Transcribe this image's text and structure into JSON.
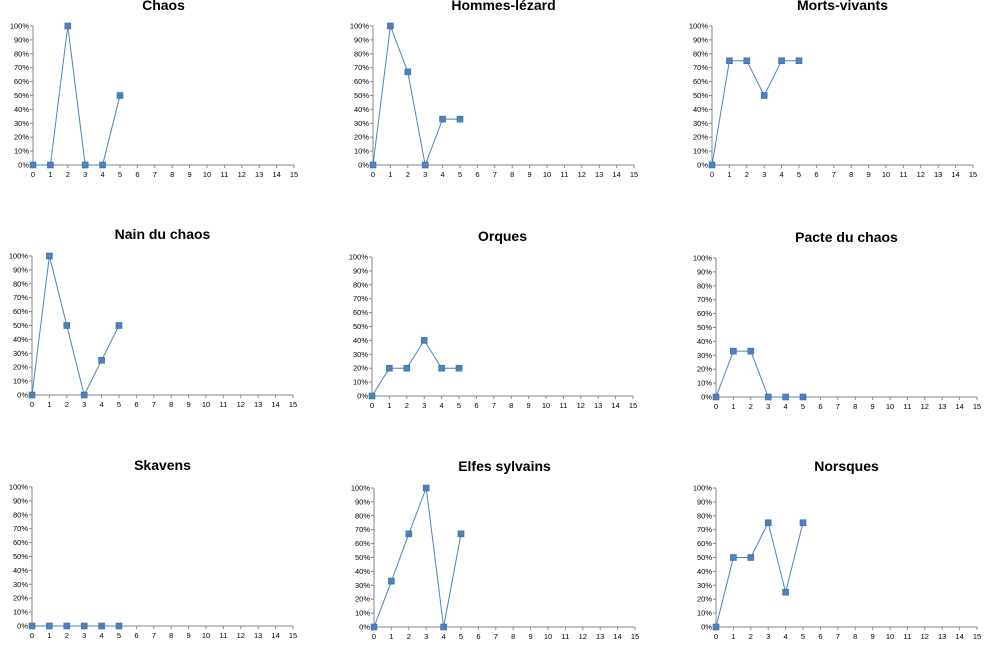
{
  "chart_data": [
    {
      "type": "line",
      "title": "Chaos",
      "x": [
        0,
        1,
        2,
        3,
        4,
        5
      ],
      "values": [
        0,
        0,
        100,
        0,
        0,
        50
      ],
      "xlim": [
        0,
        15
      ],
      "ylim": [
        0,
        100
      ],
      "xticks": [
        0,
        1,
        2,
        3,
        4,
        5,
        6,
        7,
        8,
        9,
        10,
        11,
        12,
        13,
        14,
        15
      ],
      "yticks": [
        "0%",
        "10%",
        "20%",
        "30%",
        "40%",
        "50%",
        "60%",
        "70%",
        "80%",
        "90%",
        "100%"
      ],
      "color": "#4f81bd",
      "grid": false
    },
    {
      "type": "line",
      "title": "Hommes-lézard",
      "x": [
        0,
        1,
        2,
        3,
        4,
        5
      ],
      "values": [
        0,
        100,
        67,
        0,
        33,
        33
      ],
      "xlim": [
        0,
        15
      ],
      "ylim": [
        0,
        100
      ],
      "xticks": [
        0,
        1,
        2,
        3,
        4,
        5,
        6,
        7,
        8,
        9,
        10,
        11,
        12,
        13,
        14,
        15
      ],
      "yticks": [
        "0%",
        "10%",
        "20%",
        "30%",
        "40%",
        "50%",
        "60%",
        "70%",
        "80%",
        "90%",
        "100%"
      ],
      "color": "#4f81bd",
      "grid": false
    },
    {
      "type": "line",
      "title": "Morts-vivants",
      "x": [
        0,
        1,
        2,
        3,
        4,
        5
      ],
      "values": [
        0,
        75,
        75,
        50,
        75,
        75
      ],
      "xlim": [
        0,
        15
      ],
      "ylim": [
        0,
        100
      ],
      "xticks": [
        0,
        1,
        2,
        3,
        4,
        5,
        6,
        7,
        8,
        9,
        10,
        11,
        12,
        13,
        14,
        15
      ],
      "yticks": [
        "0%",
        "10%",
        "20%",
        "30%",
        "40%",
        "50%",
        "60%",
        "70%",
        "80%",
        "90%",
        "100%"
      ],
      "color": "#4f81bd",
      "grid": false
    },
    {
      "type": "line",
      "title": "Nain du chaos",
      "x": [
        0,
        1,
        2,
        3,
        4,
        5
      ],
      "values": [
        0,
        100,
        50,
        0,
        25,
        50
      ],
      "xlim": [
        0,
        15
      ],
      "ylim": [
        0,
        100
      ],
      "xticks": [
        0,
        1,
        2,
        3,
        4,
        5,
        6,
        7,
        8,
        9,
        10,
        11,
        12,
        13,
        14,
        15
      ],
      "yticks": [
        "0%",
        "10%",
        "20%",
        "30%",
        "40%",
        "50%",
        "60%",
        "70%",
        "80%",
        "90%",
        "100%"
      ],
      "color": "#4f81bd",
      "grid": false
    },
    {
      "type": "line",
      "title": "Orques",
      "x": [
        0,
        1,
        2,
        3,
        4,
        5
      ],
      "values": [
        0,
        20,
        20,
        40,
        20,
        20
      ],
      "xlim": [
        0,
        15
      ],
      "ylim": [
        0,
        100
      ],
      "xticks": [
        0,
        1,
        2,
        3,
        4,
        5,
        6,
        7,
        8,
        9,
        10,
        11,
        12,
        13,
        14,
        15
      ],
      "yticks": [
        "0%",
        "10%",
        "20%",
        "30%",
        "40%",
        "50%",
        "60%",
        "70%",
        "80%",
        "90%",
        "100%"
      ],
      "color": "#4f81bd",
      "grid": false
    },
    {
      "type": "line",
      "title": "Pacte du chaos",
      "x": [
        0,
        1,
        2,
        3,
        4,
        5
      ],
      "values": [
        0,
        33,
        33,
        0,
        0,
        0
      ],
      "xlim": [
        0,
        15
      ],
      "ylim": [
        0,
        100
      ],
      "xticks": [
        0,
        1,
        2,
        3,
        4,
        5,
        6,
        7,
        8,
        9,
        10,
        11,
        12,
        13,
        14,
        15
      ],
      "yticks": [
        "0%",
        "10%",
        "20%",
        "30%",
        "40%",
        "50%",
        "60%",
        "70%",
        "80%",
        "90%",
        "100%"
      ],
      "color": "#4f81bd",
      "grid": false
    },
    {
      "type": "line",
      "title": "Skavens",
      "x": [
        0,
        1,
        2,
        3,
        4,
        5
      ],
      "values": [
        0,
        0,
        0,
        0,
        0,
        0
      ],
      "xlim": [
        0,
        15
      ],
      "ylim": [
        0,
        100
      ],
      "xticks": [
        0,
        1,
        2,
        3,
        4,
        5,
        6,
        7,
        8,
        9,
        10,
        11,
        12,
        13,
        14,
        15
      ],
      "yticks": [
        "0%",
        "10%",
        "20%",
        "30%",
        "40%",
        "50%",
        "60%",
        "70%",
        "80%",
        "90%",
        "100%"
      ],
      "color": "#4f81bd",
      "grid": false
    },
    {
      "type": "line",
      "title": "Elfes sylvains",
      "x": [
        0,
        1,
        2,
        3,
        4,
        5
      ],
      "values": [
        0,
        33,
        67,
        100,
        0,
        67
      ],
      "xlim": [
        0,
        15
      ],
      "ylim": [
        0,
        100
      ],
      "xticks": [
        0,
        1,
        2,
        3,
        4,
        5,
        6,
        7,
        8,
        9,
        10,
        11,
        12,
        13,
        14,
        15
      ],
      "yticks": [
        "0%",
        "10%",
        "20%",
        "30%",
        "40%",
        "50%",
        "60%",
        "70%",
        "80%",
        "90%",
        "100%"
      ],
      "color": "#4f81bd",
      "grid": false
    },
    {
      "type": "line",
      "title": "Norsques",
      "x": [
        0,
        1,
        2,
        3,
        4,
        5
      ],
      "values": [
        0,
        50,
        50,
        75,
        25,
        75
      ],
      "xlim": [
        0,
        15
      ],
      "ylim": [
        0,
        100
      ],
      "xticks": [
        0,
        1,
        2,
        3,
        4,
        5,
        6,
        7,
        8,
        9,
        10,
        11,
        12,
        13,
        14,
        15
      ],
      "yticks": [
        "0%",
        "10%",
        "20%",
        "30%",
        "40%",
        "50%",
        "60%",
        "70%",
        "80%",
        "90%",
        "100%"
      ],
      "color": "#4f81bd",
      "grid": false
    }
  ]
}
